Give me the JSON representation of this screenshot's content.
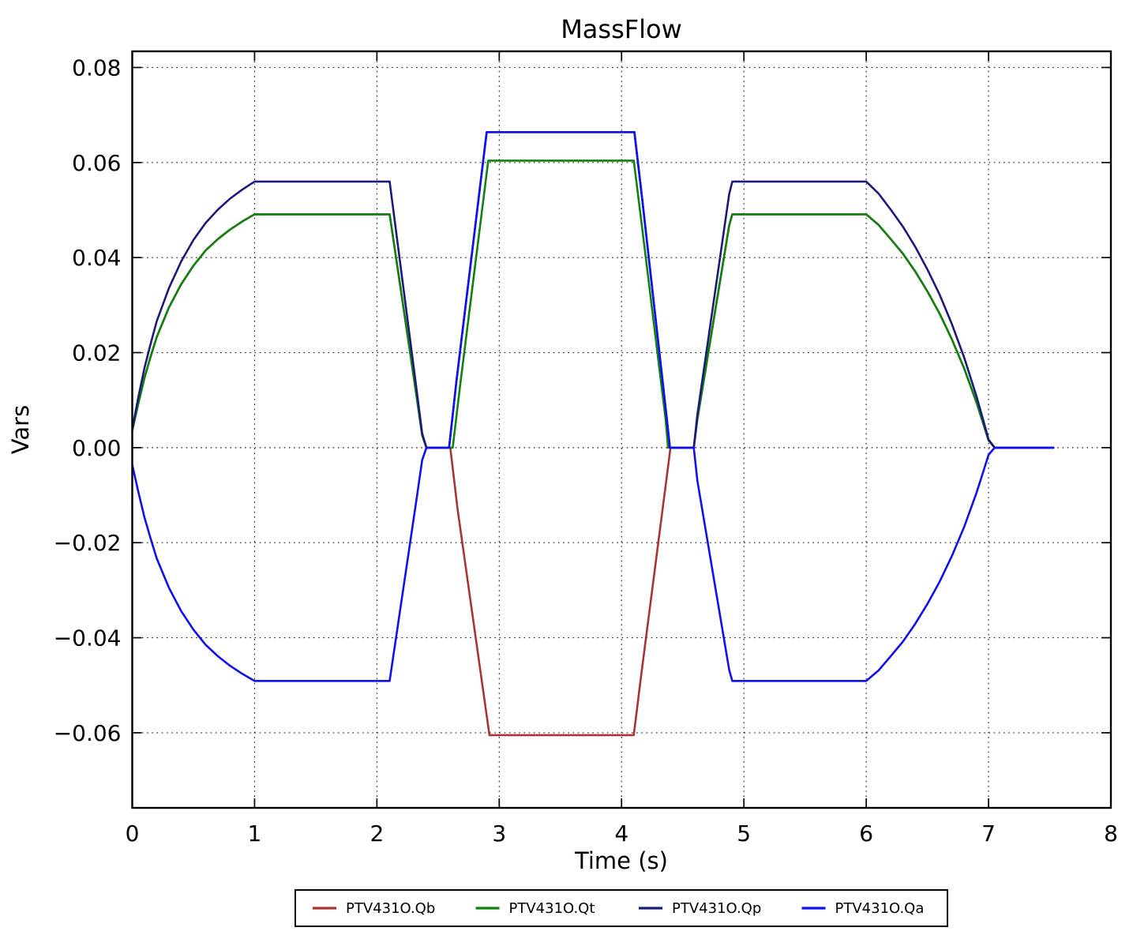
{
  "chart_data": {
    "type": "line",
    "title": "MassFlow",
    "xlabel": "Time (s)",
    "ylabel": "Vars",
    "xlim": [
      0,
      8
    ],
    "ylim": [
      -0.0758,
      0.0834
    ],
    "xticks": [
      0,
      1,
      2,
      3,
      4,
      5,
      6,
      7,
      8
    ],
    "xtick_labels": [
      "0",
      "1",
      "2",
      "3",
      "4",
      "5",
      "6",
      "7",
      "8"
    ],
    "yticks": [
      -0.06,
      -0.04,
      -0.02,
      0.0,
      0.02,
      0.04,
      0.06,
      0.08
    ],
    "ytick_labels": [
      "−0.06",
      "−0.04",
      "−0.02",
      "0.00",
      "0.02",
      "0.04",
      "0.06",
      "0.08"
    ],
    "grid": true,
    "grid_style": "dotted",
    "legend_position": "bottom-outside-center",
    "plateau_summary": {
      "pulse1": {
        "interval": [
          1.0,
          2.1
        ],
        "Qp": 0.056,
        "Qt": 0.0491,
        "Qa": -0.0491
      },
      "pulse2": {
        "interval": [
          2.9,
          4.1
        ],
        "Qa": 0.0664,
        "Qt": 0.0604,
        "Qb": -0.0605
      },
      "pulse3": {
        "interval": [
          4.9,
          6.0
        ],
        "Qp": 0.056,
        "Qt": 0.0491,
        "Qa": -0.0491
      }
    },
    "series": [
      {
        "name": "PTV431O.Qb",
        "color": "#aa3333",
        "points": [
          [
            0,
            0.0036
          ],
          [
            0.05,
            0.0093
          ],
          [
            0.1,
            0.0147
          ],
          [
            0.15,
            0.0191
          ],
          [
            0.2,
            0.0233
          ],
          [
            0.3,
            0.0295
          ],
          [
            0.4,
            0.0344
          ],
          [
            0.5,
            0.0383
          ],
          [
            0.6,
            0.0415
          ],
          [
            0.7,
            0.0439
          ],
          [
            0.8,
            0.0459
          ],
          [
            0.9,
            0.0476
          ],
          [
            1.0,
            0.0491
          ],
          [
            2.104,
            0.0491
          ],
          [
            2.32,
            0.0115
          ],
          [
            2.37,
            0.0026
          ],
          [
            2.405,
            0
          ],
          [
            2.6,
            0
          ],
          [
            2.66,
            -0.013
          ],
          [
            2.92,
            -0.0605
          ],
          [
            4.1,
            -0.0605
          ],
          [
            4.16,
            -0.048
          ],
          [
            4.37,
            -0.006
          ],
          [
            4.4,
            0
          ],
          [
            4.59,
            0
          ],
          [
            4.62,
            0.006
          ],
          [
            4.88,
            0.0468
          ],
          [
            4.905,
            0.0491
          ],
          [
            6.0,
            0.0491
          ],
          [
            6.1,
            0.0469
          ],
          [
            6.2,
            0.0439
          ],
          [
            6.3,
            0.0408
          ],
          [
            6.4,
            0.0371
          ],
          [
            6.5,
            0.0329
          ],
          [
            6.6,
            0.0282
          ],
          [
            6.7,
            0.0228
          ],
          [
            6.8,
            0.0167
          ],
          [
            6.9,
            0.0096
          ],
          [
            6.95,
            0.0056
          ],
          [
            7.0,
            0.0015
          ],
          [
            7.05,
            0
          ],
          [
            7.53,
            0
          ]
        ]
      },
      {
        "name": "PTV431O.Qt",
        "color": "#0f820f",
        "points": [
          [
            0,
            0.0036
          ],
          [
            0.05,
            0.0093
          ],
          [
            0.1,
            0.0147
          ],
          [
            0.15,
            0.0191
          ],
          [
            0.2,
            0.0233
          ],
          [
            0.3,
            0.0295
          ],
          [
            0.4,
            0.0344
          ],
          [
            0.5,
            0.0383
          ],
          [
            0.6,
            0.0415
          ],
          [
            0.7,
            0.0439
          ],
          [
            0.8,
            0.0459
          ],
          [
            0.9,
            0.0476
          ],
          [
            1.0,
            0.0491
          ],
          [
            2.104,
            0.0491
          ],
          [
            2.32,
            0.0115
          ],
          [
            2.37,
            0.0026
          ],
          [
            2.405,
            0
          ],
          [
            2.62,
            0
          ],
          [
            2.68,
            0.013
          ],
          [
            2.91,
            0.0604
          ],
          [
            4.1,
            0.0604
          ],
          [
            4.16,
            0.048
          ],
          [
            4.36,
            0.006
          ],
          [
            4.38,
            0
          ],
          [
            4.59,
            0
          ],
          [
            4.62,
            0.006
          ],
          [
            4.88,
            0.0468
          ],
          [
            4.905,
            0.0491
          ],
          [
            6.0,
            0.0491
          ],
          [
            6.1,
            0.0469
          ],
          [
            6.2,
            0.0439
          ],
          [
            6.3,
            0.0408
          ],
          [
            6.4,
            0.0371
          ],
          [
            6.5,
            0.0329
          ],
          [
            6.6,
            0.0282
          ],
          [
            6.7,
            0.0228
          ],
          [
            6.8,
            0.0167
          ],
          [
            6.9,
            0.0096
          ],
          [
            6.95,
            0.0056
          ],
          [
            7.0,
            0.0015
          ],
          [
            7.05,
            0
          ],
          [
            7.53,
            0
          ]
        ]
      },
      {
        "name": "PTV431O.Qp",
        "color": "#1a1a7a",
        "points": [
          [
            0,
            0.0039
          ],
          [
            0.05,
            0.0106
          ],
          [
            0.1,
            0.0168
          ],
          [
            0.15,
            0.0218
          ],
          [
            0.2,
            0.0266
          ],
          [
            0.3,
            0.0336
          ],
          [
            0.4,
            0.0392
          ],
          [
            0.5,
            0.0437
          ],
          [
            0.6,
            0.0473
          ],
          [
            0.7,
            0.0501
          ],
          [
            0.8,
            0.0524
          ],
          [
            0.9,
            0.0543
          ],
          [
            1.0,
            0.056
          ],
          [
            2.104,
            0.056
          ],
          [
            2.32,
            0.013
          ],
          [
            2.37,
            0.003
          ],
          [
            2.405,
            0
          ],
          [
            2.59,
            0
          ],
          [
            2.65,
            0.014
          ],
          [
            2.897,
            0.0664
          ],
          [
            4.105,
            0.0664
          ],
          [
            4.17,
            0.052
          ],
          [
            4.37,
            0.006
          ],
          [
            4.395,
            0
          ],
          [
            4.59,
            0
          ],
          [
            4.62,
            0.007
          ],
          [
            4.88,
            0.0534
          ],
          [
            4.905,
            0.056
          ],
          [
            6.0,
            0.056
          ],
          [
            6.1,
            0.0535
          ],
          [
            6.2,
            0.0501
          ],
          [
            6.3,
            0.0465
          ],
          [
            6.4,
            0.0423
          ],
          [
            6.5,
            0.0375
          ],
          [
            6.6,
            0.0322
          ],
          [
            6.7,
            0.026
          ],
          [
            6.8,
            0.019
          ],
          [
            6.9,
            0.0109
          ],
          [
            6.95,
            0.0064
          ],
          [
            7.0,
            0.0017
          ],
          [
            7.05,
            0
          ],
          [
            7.53,
            0
          ]
        ]
      },
      {
        "name": "PTV431O.Qa",
        "color": "#1010ee",
        "points": [
          [
            0,
            -0.0036
          ],
          [
            0.05,
            -0.0093
          ],
          [
            0.1,
            -0.0147
          ],
          [
            0.15,
            -0.0191
          ],
          [
            0.2,
            -0.0233
          ],
          [
            0.3,
            -0.0295
          ],
          [
            0.4,
            -0.0344
          ],
          [
            0.5,
            -0.0383
          ],
          [
            0.6,
            -0.0415
          ],
          [
            0.7,
            -0.0439
          ],
          [
            0.8,
            -0.0459
          ],
          [
            0.9,
            -0.0476
          ],
          [
            1.0,
            -0.0491
          ],
          [
            2.104,
            -0.0491
          ],
          [
            2.32,
            -0.0115
          ],
          [
            2.37,
            -0.0026
          ],
          [
            2.405,
            0
          ],
          [
            2.59,
            0
          ],
          [
            2.65,
            0.014
          ],
          [
            2.897,
            0.0664
          ],
          [
            4.105,
            0.0664
          ],
          [
            4.17,
            0.052
          ],
          [
            4.37,
            0.006
          ],
          [
            4.395,
            0
          ],
          [
            4.59,
            0
          ],
          [
            4.62,
            -0.007
          ],
          [
            4.88,
            -0.0468
          ],
          [
            4.905,
            -0.0491
          ],
          [
            6.0,
            -0.0491
          ],
          [
            6.1,
            -0.0469
          ],
          [
            6.2,
            -0.0439
          ],
          [
            6.3,
            -0.0408
          ],
          [
            6.4,
            -0.0371
          ],
          [
            6.5,
            -0.0329
          ],
          [
            6.6,
            -0.0282
          ],
          [
            6.7,
            -0.0228
          ],
          [
            6.8,
            -0.0167
          ],
          [
            6.9,
            -0.0096
          ],
          [
            6.95,
            -0.0056
          ],
          [
            7.0,
            -0.0015
          ],
          [
            7.05,
            0
          ],
          [
            7.53,
            0
          ]
        ]
      }
    ]
  }
}
